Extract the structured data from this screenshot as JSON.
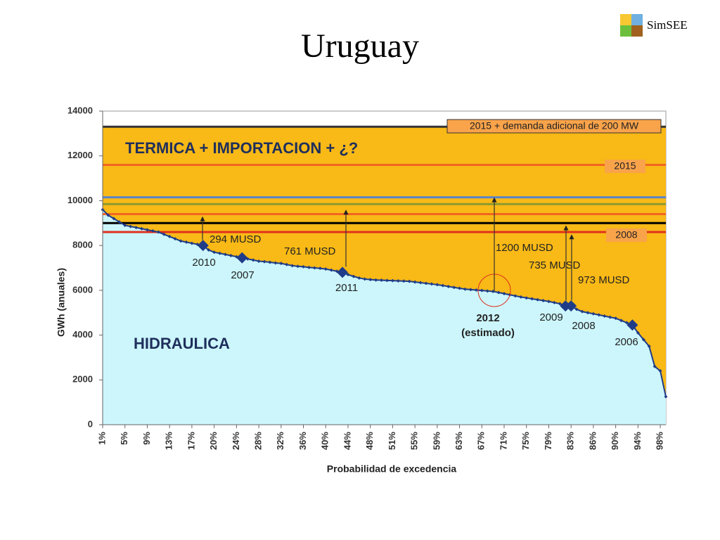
{
  "header": {
    "title": "Uruguay",
    "logo": "SimSEE"
  },
  "chart_data": {
    "type": "area",
    "y_label": "GWh (anuales)",
    "x_label": "Probabilidad de excedencia",
    "ylim": [
      0,
      14000
    ],
    "yticks": [
      0,
      2000,
      4000,
      6000,
      8000,
      10000,
      12000,
      14000
    ],
    "categories": [
      "1%",
      null,
      null,
      null,
      "5%",
      null,
      null,
      null,
      "9%",
      null,
      null,
      null,
      "13%",
      null,
      null,
      null,
      "17%",
      null,
      null,
      null,
      "20%",
      null,
      null,
      null,
      "24%",
      null,
      null,
      null,
      "28%",
      null,
      null,
      null,
      "32%",
      null,
      null,
      null,
      "36%",
      null,
      null,
      null,
      "40%",
      null,
      null,
      null,
      "44%",
      null,
      null,
      null,
      "48%",
      null,
      null,
      null,
      "51%",
      null,
      null,
      null,
      "55%",
      null,
      null,
      null,
      "59%",
      null,
      null,
      null,
      "63%",
      null,
      null,
      null,
      "67%",
      null,
      null,
      null,
      "71%",
      null,
      null,
      null,
      "75%",
      null,
      null,
      null,
      "79%",
      null,
      null,
      null,
      "83%",
      null,
      null,
      null,
      "86%",
      null,
      null,
      null,
      "90%",
      null,
      null,
      null,
      "94%",
      null,
      null,
      null,
      "98%",
      null
    ],
    "values": [
      9600,
      9350,
      9200,
      9050,
      8900,
      8850,
      8800,
      8750,
      8700,
      8650,
      8600,
      8500,
      8400,
      8300,
      8200,
      8150,
      8100,
      8050,
      8000,
      7800,
      7700,
      7650,
      7600,
      7550,
      7500,
      7450,
      7400,
      7350,
      7300,
      7280,
      7250,
      7220,
      7200,
      7150,
      7100,
      7070,
      7050,
      7020,
      7000,
      6980,
      6950,
      6900,
      6850,
      6800,
      6700,
      6620,
      6550,
      6500,
      6480,
      6460,
      6450,
      6440,
      6430,
      6420,
      6410,
      6400,
      6370,
      6340,
      6310,
      6280,
      6250,
      6210,
      6170,
      6130,
      6090,
      6050,
      6030,
      6010,
      5990,
      5970,
      5950,
      5900,
      5850,
      5800,
      5750,
      5700,
      5660,
      5620,
      5580,
      5540,
      5500,
      5450,
      5400,
      5300,
      5300,
      5150,
      5050,
      5000,
      4950,
      4900,
      4850,
      4800,
      4750,
      4650,
      4550,
      4450,
      4100,
      3800,
      3500,
      2600,
      2400,
      1250
    ],
    "color": "#1f3c88",
    "area_color": "#ccf6fb",
    "upper_color": "#f9b916",
    "regions": [
      "TERMICA + IMPORTACION + ¿?",
      "HIDRAULICA"
    ],
    "levels": [
      {
        "value": 13300,
        "color": "#333333",
        "label": "2015 + demanda adicional de 200 MW"
      },
      {
        "value": 11600,
        "color": "#f26522",
        "label": "2015"
      },
      {
        "value": 10150,
        "color": "#5b86c9"
      },
      {
        "value": 9850,
        "color": "#8c9a2e"
      },
      {
        "value": 9400,
        "color": "#f26522"
      },
      {
        "value": 9000,
        "color": "#000000"
      },
      {
        "value": 8600,
        "color": "#e0301e",
        "label": "2008"
      }
    ],
    "annotations": [
      {
        "label": "2010",
        "index": 18,
        "arrow_to": 9300,
        "amount": "294 MUSD"
      },
      {
        "label": "2007",
        "index": 25
      },
      {
        "label": "2011",
        "index": 43,
        "arrow_to": 9600,
        "amount": "761 MUSD"
      },
      {
        "label": "2012",
        "sublabel": "(estimado)",
        "index": 70,
        "arrow_to": 10150,
        "amount": "1200 MUSD"
      },
      {
        "label": "2009",
        "index": 83,
        "arrow_to": 8900,
        "amount": "735 MUSD"
      },
      {
        "label": "2008",
        "index": 84,
        "arrow_to": 8500,
        "amount": "973 MUSD"
      },
      {
        "label": "2006",
        "index": 95
      }
    ]
  }
}
